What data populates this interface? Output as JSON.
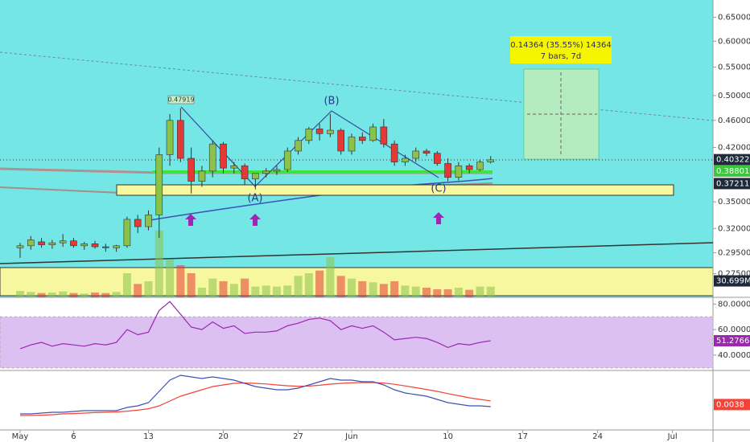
{
  "chart_data": {
    "type": "candlestick",
    "categories": [
      "May",
      null,
      null,
      null,
      null,
      "6",
      null,
      null,
      null,
      null,
      null,
      null,
      "13",
      null,
      null,
      null,
      null,
      null,
      null,
      "20",
      null,
      null,
      null,
      null,
      null,
      null,
      "27",
      null,
      null,
      null,
      null,
      "Jun",
      null,
      null,
      null,
      null,
      null,
      null,
      null,
      null,
      "10",
      null,
      null,
      null,
      null,
      null,
      null,
      "17",
      null,
      null,
      null,
      null,
      null,
      null,
      "24",
      null,
      null,
      null,
      null,
      null,
      null,
      "Jul",
      null,
      null,
      null
    ],
    "open": [
      0.3,
      0.302,
      0.306,
      0.303,
      0.305,
      0.307,
      0.302,
      0.304,
      0.301,
      0.3,
      0.302,
      0.33,
      0.322,
      0.335,
      0.41,
      0.46,
      0.405,
      0.375,
      0.388,
      0.425,
      0.392,
      0.395,
      0.378,
      0.385,
      0.388,
      0.39,
      0.415,
      0.43,
      0.447,
      0.44,
      0.445,
      0.415,
      0.435,
      0.43,
      0.45,
      0.425,
      0.4,
      0.405,
      0.415,
      0.412,
      0.398,
      0.38,
      0.395,
      0.39,
      0.4,
      null,
      null,
      null,
      null,
      null,
      null,
      null,
      null,
      null,
      null,
      null,
      null,
      null,
      null,
      null,
      null,
      null,
      null,
      null,
      null
    ],
    "high": [
      0.305,
      0.312,
      0.31,
      0.308,
      0.314,
      0.31,
      0.306,
      0.307,
      0.304,
      0.303,
      0.333,
      0.335,
      0.34,
      0.42,
      0.47,
      0.479,
      0.42,
      0.395,
      0.43,
      0.428,
      0.4,
      0.398,
      0.385,
      0.392,
      0.395,
      0.42,
      0.435,
      0.45,
      0.455,
      0.47,
      0.448,
      0.44,
      0.442,
      0.455,
      0.462,
      0.43,
      0.41,
      0.42,
      0.418,
      0.415,
      0.405,
      0.4,
      0.398,
      0.403,
      0.408,
      null,
      null,
      null,
      null,
      null,
      null,
      null,
      null,
      null,
      null,
      null,
      null,
      null,
      null,
      null,
      null,
      null,
      null,
      null,
      null
    ],
    "low": [
      0.29,
      0.298,
      0.3,
      0.299,
      0.301,
      0.3,
      0.298,
      0.299,
      0.296,
      0.296,
      0.3,
      0.315,
      0.318,
      0.31,
      0.395,
      0.4,
      0.36,
      0.368,
      0.38,
      0.385,
      0.385,
      0.37,
      0.365,
      0.38,
      0.383,
      0.387,
      0.41,
      0.425,
      0.43,
      0.435,
      0.41,
      0.41,
      0.425,
      0.428,
      0.42,
      0.395,
      0.395,
      0.4,
      0.408,
      0.395,
      0.375,
      0.376,
      0.385,
      0.388,
      0.398,
      null,
      null,
      null,
      null,
      null,
      null,
      null,
      null,
      null,
      null,
      null,
      null,
      null,
      null,
      null,
      null,
      null,
      null,
      null,
      null
    ],
    "close": [
      0.302,
      0.308,
      0.303,
      0.305,
      0.307,
      0.302,
      0.304,
      0.301,
      0.3,
      0.302,
      0.33,
      0.322,
      0.335,
      0.41,
      0.46,
      0.405,
      0.375,
      0.388,
      0.425,
      0.392,
      0.395,
      0.378,
      0.385,
      0.388,
      0.39,
      0.415,
      0.43,
      0.447,
      0.44,
      0.445,
      0.415,
      0.435,
      0.43,
      0.45,
      0.425,
      0.4,
      0.405,
      0.415,
      0.412,
      0.398,
      0.38,
      0.395,
      0.39,
      0.4,
      0.403,
      null,
      null,
      null,
      null,
      null,
      null,
      null,
      null,
      null,
      null,
      null,
      null,
      null,
      null,
      null,
      null,
      null,
      null,
      null,
      null
    ],
    "up_color": "#8bc34a",
    "down_color": "#e53935",
    "log_scale": true,
    "ylim": [
      0.254,
      0.689
    ],
    "yticks": [
      {
        "value": 0.65,
        "label": "0.65000"
      },
      {
        "value": 0.6,
        "label": "0.60000"
      },
      {
        "value": 0.55,
        "label": "0.55000"
      },
      {
        "value": 0.5,
        "label": "0.50000"
      },
      {
        "value": 0.46,
        "label": "0.46000"
      },
      {
        "value": 0.42,
        "label": "0.42000"
      },
      {
        "value": 0.35,
        "label": "0.35000"
      },
      {
        "value": 0.32,
        "label": "0.32000"
      },
      {
        "value": 0.295,
        "label": "0.29500"
      },
      {
        "value": 0.275,
        "label": "0.27500"
      }
    ],
    "price_labels": [
      0.40322,
      0.38801,
      0.37211
    ],
    "annotations": [
      "0.47919",
      "(A)",
      "(B)",
      "(C)"
    ],
    "position_label": "0.14364 (35.55%) 14364",
    "position_sublabel": "7 bars, 7d",
    "volume": [
      12,
      10,
      8,
      9,
      11,
      8,
      7,
      9,
      8,
      10,
      45,
      25,
      30,
      125,
      70,
      60,
      45,
      18,
      35,
      30,
      25,
      35,
      20,
      22,
      20,
      22,
      40,
      45,
      50,
      75,
      40,
      35,
      30,
      28,
      25,
      30,
      22,
      20,
      18,
      15,
      15,
      18,
      14,
      20,
      20,
      null,
      null,
      null,
      null,
      null,
      null,
      null,
      null,
      null,
      null,
      null,
      null,
      null,
      null,
      null,
      null,
      null,
      null,
      null,
      null
    ],
    "volume_ylim": [
      0,
      135
    ],
    "volume_label": {
      "value": 30.699,
      "label": "30.699M"
    },
    "rsi": [
      45,
      48,
      50,
      47,
      49,
      48,
      47,
      49,
      48,
      50,
      60,
      56,
      58,
      75,
      82,
      72,
      62,
      60,
      66,
      61,
      63,
      57,
      58,
      58,
      59,
      63,
      65,
      68,
      69,
      67,
      60,
      63,
      61,
      63,
      58,
      52,
      53,
      54,
      53,
      50,
      46,
      49,
      48,
      50,
      51.2766,
      null,
      null,
      null,
      null,
      null,
      null,
      null,
      null,
      null,
      null,
      null,
      null,
      null,
      null,
      null,
      null,
      null,
      null,
      null,
      null
    ],
    "rsi_ylim": [
      28,
      84
    ],
    "rsi_band": [
      30,
      70
    ],
    "rsi_ticks": [
      {
        "value": 80,
        "label": "80.0000"
      },
      {
        "value": 60,
        "label": "60.0000"
      },
      {
        "value": 40,
        "label": "40.0000"
      }
    ],
    "rsi_label": 51.2766,
    "macd": [
      -0.002,
      -0.002,
      -0.0015,
      -0.001,
      -0.001,
      -0.0005,
      0,
      0,
      0,
      0,
      0.002,
      0.003,
      0.005,
      0.012,
      0.019,
      0.022,
      0.021,
      0.02,
      0.021,
      0.02,
      0.019,
      0.017,
      0.015,
      0.014,
      0.013,
      0.013,
      0.014,
      0.016,
      0.018,
      0.02,
      0.019,
      0.019,
      0.018,
      0.018,
      0.016,
      0.013,
      0.011,
      0.01,
      0.009,
      0.007,
      0.005,
      0.004,
      0.003,
      0.003,
      0.0025,
      null,
      null,
      null,
      null,
      null,
      null,
      null,
      null,
      null,
      null,
      null,
      null,
      null,
      null,
      null,
      null,
      null,
      null,
      null,
      null
    ],
    "signal": [
      -0.003,
      -0.003,
      -0.0028,
      -0.0025,
      -0.002,
      -0.0018,
      -0.0015,
      -0.0012,
      -0.001,
      -0.0008,
      -0.0003,
      0.0003,
      0.0012,
      0.003,
      0.006,
      0.009,
      0.011,
      0.013,
      0.015,
      0.016,
      0.017,
      0.0172,
      0.017,
      0.0166,
      0.016,
      0.0155,
      0.0152,
      0.0153,
      0.0158,
      0.0165,
      0.017,
      0.0173,
      0.0175,
      0.0175,
      0.0172,
      0.0164,
      0.0154,
      0.0143,
      0.0132,
      0.012,
      0.0106,
      0.0093,
      0.008,
      0.007,
      0.0061,
      null,
      null,
      null,
      null,
      null,
      null,
      null,
      null,
      null,
      null,
      null,
      null,
      null,
      null,
      null,
      null,
      null,
      null,
      null,
      null
    ],
    "macd_ylim": [
      -0.012,
      0.024
    ],
    "macd_label": 0.0038
  }
}
